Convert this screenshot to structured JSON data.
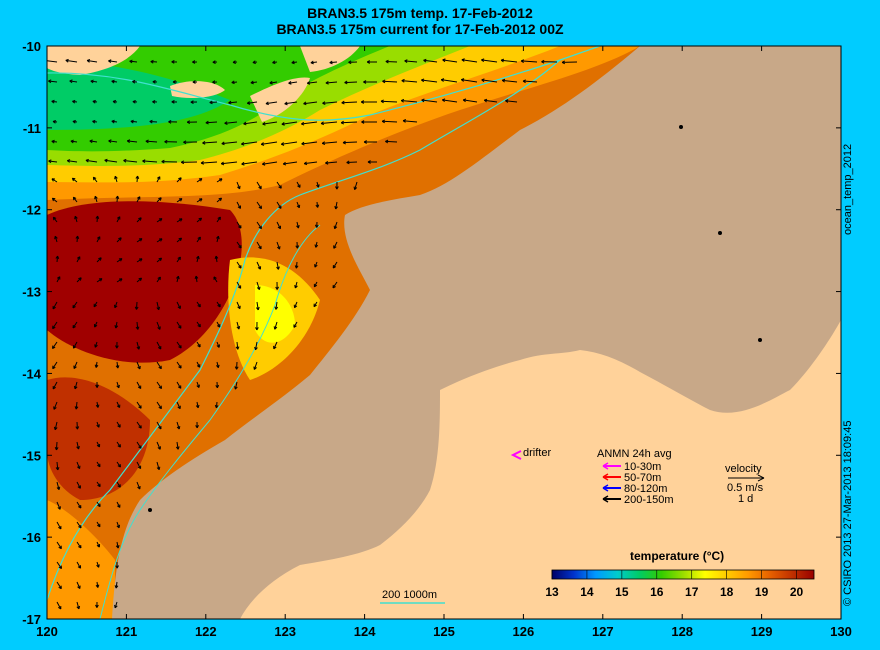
{
  "titles": {
    "line1": "BRAN3.5 175m temp. 17-Feb-2012",
    "line2": "BRAN3.5 175m current for 17-Feb-2012 00Z"
  },
  "axes": {
    "x_ticks": [
      "120",
      "121",
      "122",
      "123",
      "124",
      "125",
      "126",
      "127",
      "128",
      "129",
      "130"
    ],
    "y_ticks": [
      "-10",
      "-11",
      "-12",
      "-13",
      "-14",
      "-15",
      "-16",
      "-17"
    ],
    "lon_range": [
      120,
      130
    ],
    "lat_range": [
      -17,
      -10
    ]
  },
  "side_labels": {
    "top": "ocean_temp_2012",
    "bottom": "© CSIRO 2013  27-Mar-2013 18:09:45"
  },
  "legend": {
    "drifter_label": "drifter",
    "anmn_title": "ANMN 24h avg",
    "anmn_items": [
      {
        "label": "10-30m",
        "color": "#ff00ff"
      },
      {
        "label": "50-70m",
        "color": "#ff0000"
      },
      {
        "label": "80-120m",
        "color": "#0000ff"
      },
      {
        "label": "200-150m",
        "color": "#000000"
      }
    ],
    "velocity_title": "velocity",
    "velocity_scale": "0.5 m/s",
    "velocity_time": "1 d",
    "isobaths": "200  1000m"
  },
  "colorbar": {
    "title": "temperature (°C)",
    "ticks": [
      "13",
      "14",
      "15",
      "16",
      "17",
      "18",
      "19",
      "20"
    ],
    "range": [
      13,
      20.5
    ],
    "colors": [
      "#000066",
      "#0033cc",
      "#0099ff",
      "#00cccc",
      "#00cc66",
      "#33cc00",
      "#99dd00",
      "#ffff00",
      "#ffcc00",
      "#ff9900",
      "#e66000",
      "#c03000",
      "#990000"
    ]
  },
  "colors": {
    "background": "#00ccff",
    "land_shelf": "#c8a888",
    "land_far": "#ffd29a",
    "isobath": "#40e0d0"
  }
}
